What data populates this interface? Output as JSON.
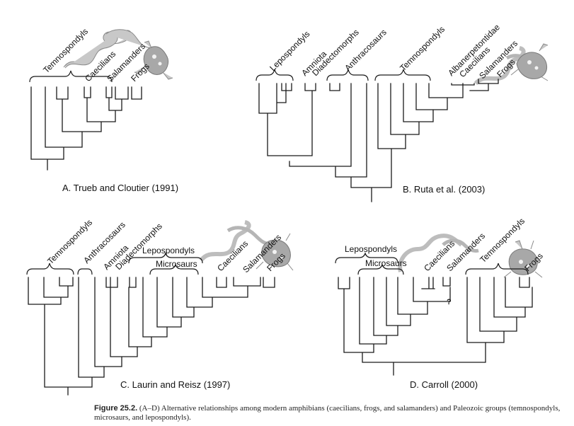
{
  "panels": {
    "a": {
      "title": "A. Trueb and Cloutier (1991)",
      "labels": [
        "Temnospondyls",
        "Caecilians",
        "Salamanders",
        "Frogs"
      ],
      "illustrations": [
        "caecilian-illustration",
        "salamander-illustration",
        "frog-illustration"
      ]
    },
    "b": {
      "title": "B. Ruta et al. (2003)",
      "labels": [
        "Lepospondyls",
        "Amniota",
        "Diadectomorphs",
        "Anthracosaurs",
        "Temnospondyls",
        "Albanerpetontidae",
        "Caecilians",
        "Salamanders",
        "Frogs"
      ],
      "illustrations": [
        "caecilian-illustration",
        "salamander-illustration",
        "frog-illustration"
      ]
    },
    "c": {
      "title": "C. Laurin and Reisz (1997)",
      "labels": [
        "Temnospondyls",
        "Anthracosaurs",
        "Amniota",
        "Diadectomorphs",
        "Lepospondyls",
        "Microsaurs",
        "Caecilians",
        "Salamanders",
        "Frogs"
      ],
      "illustrations": [
        "caecilian-illustration",
        "salamander-illustration",
        "frog-illustration"
      ]
    },
    "d": {
      "title": "D. Carroll (2000)",
      "labels": [
        "Lepospondyls",
        "Microsaurs",
        "Caecilians",
        "Salamanders",
        "Temnospondyls",
        "Frogs"
      ],
      "question_mark": "?",
      "illustrations": [
        "caecilian-illustration",
        "salamander-illustration",
        "frog-illustration"
      ]
    }
  },
  "caption": {
    "label": "Figure 25.2.",
    "text": "(A–D) Alternative relationships among modern amphibians (caecilians, frogs, and salamanders) and Paleozoic groups (temnospondyls, microsaurs, and lepospondyls)."
  }
}
